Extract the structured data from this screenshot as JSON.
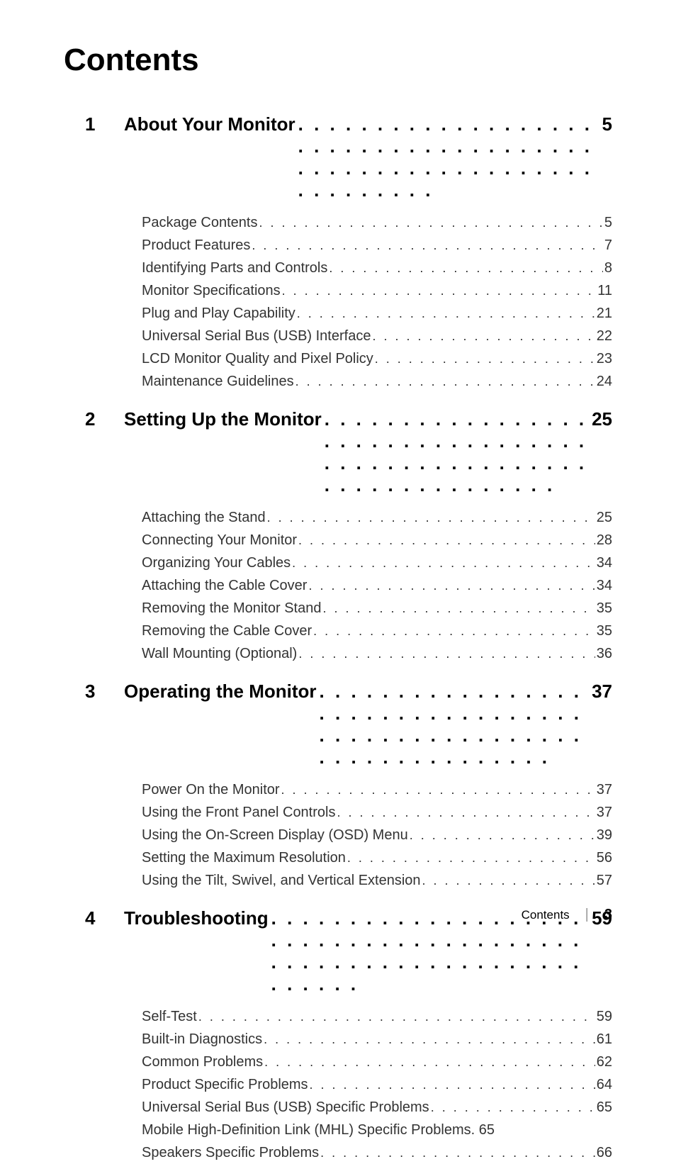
{
  "title": "Contents",
  "chapters": [
    {
      "num": "1",
      "title": "About Your Monitor",
      "page": "5",
      "prefix_space": true,
      "sections": [
        {
          "title": "Package Contents",
          "page": "5",
          "spaced_dots": true
        },
        {
          "title": "Product Features ",
          "page": "7",
          "spaced_dots": true
        },
        {
          "title": "Identifying Parts and Controls ",
          "page": "8",
          "spaced_dots": true
        },
        {
          "title": "Monitor Specifications ",
          "page": " 11",
          "spaced_dots": true
        },
        {
          "title": "Plug and Play Capability",
          "page": " 21",
          "spaced_dots": true
        },
        {
          "title": "Universal Serial Bus (USB) Interface ",
          "page": "22",
          "spaced_dots": true
        },
        {
          "title": "LCD Monitor Quality and Pixel Policy",
          "page": "23",
          "spaced_dots": true
        },
        {
          "title": "Maintenance Guidelines",
          "page": "24",
          "spaced_dots": true
        }
      ]
    },
    {
      "num": "2",
      "title": "Setting Up the Monitor ",
      "page": " 25",
      "sections": [
        {
          "title": "Attaching the Stand",
          "page": "25",
          "spaced_dots": true
        },
        {
          "title": "Connecting Your Monitor ",
          "page": "28",
          "spaced_dots": true
        },
        {
          "title": "Organizing Your Cables ",
          "page": "34",
          "spaced_dots": true
        },
        {
          "title": "Attaching the Cable Cover",
          "page": "34",
          "spaced_dots": true
        },
        {
          "title": "Removing the Monitor Stand ",
          "page": "35",
          "spaced_dots": true
        },
        {
          "title": "Removing the Cable Cover ",
          "page": "35",
          "spaced_dots": true
        },
        {
          "title": "Wall Mounting (Optional)",
          "page": "36",
          "spaced_dots": true
        }
      ]
    },
    {
      "num": "3",
      "title": "Operating the Monitor",
      "page": " 37",
      "sections": [
        {
          "title": "Power On the Monitor ",
          "page": "37",
          "spaced_dots": true
        },
        {
          "title": "Using the Front Panel Controls",
          "page": "37",
          "spaced_dots": true
        },
        {
          "title": "Using the On-Screen Display (OSD) Menu ",
          "page": "39",
          "spaced_dots": true
        },
        {
          "title": "Setting the Maximum Resolution ",
          "page": "56",
          "spaced_dots": true
        },
        {
          "title": "Using the Tilt, Swivel, and Vertical Extension",
          "page": "57",
          "spaced_dots": true
        }
      ]
    },
    {
      "num": "4",
      "title": "Troubleshooting ",
      "page": " 59",
      "sections": [
        {
          "title": "Self-Test ",
          "page": "59",
          "spaced_dots": true
        },
        {
          "title": "Built-in Diagnostics ",
          "page": " 61",
          "spaced_dots": true
        },
        {
          "title": "Common Problems ",
          "page": "62",
          "spaced_dots": true
        },
        {
          "title": "Product Specific Problems ",
          "page": "64",
          "spaced_dots": true
        },
        {
          "title": "Universal Serial Bus (USB) Specific Problems ",
          "page": "65",
          "spaced_dots": true
        },
        {
          "title": "Mobile High-Definition Link (MHL) Specific Problems",
          "page": "65",
          "no_dots": true
        },
        {
          "title": "Speakers Specific Problems",
          "page": "66",
          "spaced_dots": true
        }
      ]
    }
  ],
  "footer": {
    "label": "Contents",
    "page": "3"
  }
}
